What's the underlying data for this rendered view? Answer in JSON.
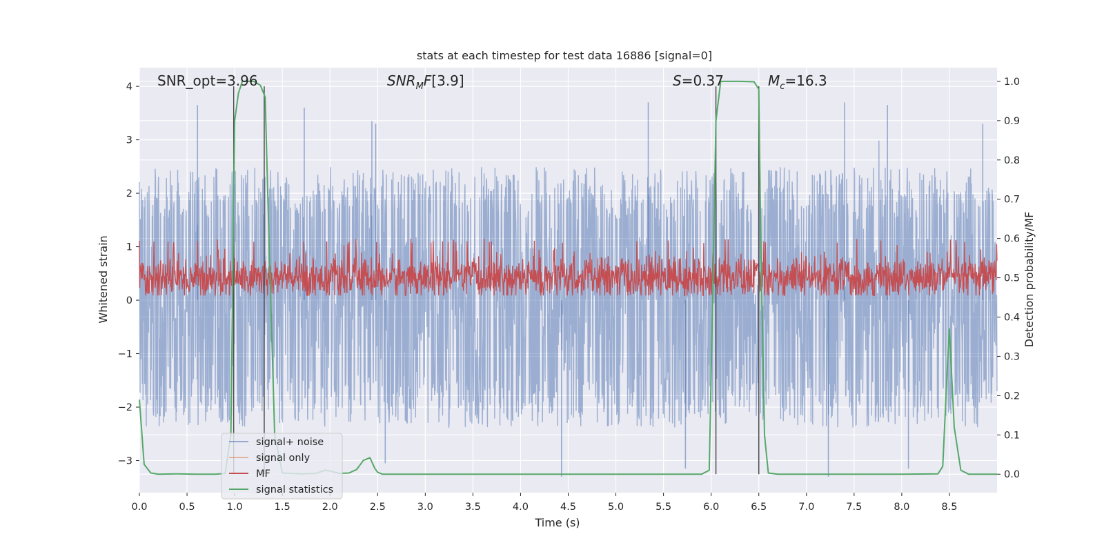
{
  "chart_data": {
    "type": "line",
    "title": "stats at each timestep for test data 16886 [signal=0]",
    "xlabel": "Time (s)",
    "ylabel_left": "Whitened strain",
    "ylabel_right": "Detection probability/MF",
    "xlim": [
      0.0,
      9.0
    ],
    "ylim_left": [
      -3.6,
      4.35
    ],
    "ylim_right": [
      -0.047,
      1.035
    ],
    "x_ticks": [
      "0.0",
      "0.5",
      "1.0",
      "1.5",
      "2.0",
      "2.5",
      "3.0",
      "3.5",
      "4.0",
      "4.5",
      "5.0",
      "5.5",
      "6.0",
      "6.5",
      "7.0",
      "7.5",
      "8.0",
      "8.5"
    ],
    "x_tick_values": [
      0.0,
      0.5,
      1.0,
      1.5,
      2.0,
      2.5,
      3.0,
      3.5,
      4.0,
      4.5,
      5.0,
      5.5,
      6.0,
      6.5,
      7.0,
      7.5,
      8.0,
      8.5
    ],
    "y_left_ticks": [
      "4",
      "3",
      "2",
      "1",
      "0",
      "−1",
      "−2",
      "−3"
    ],
    "y_left_tick_values": [
      4,
      3,
      2,
      1,
      0,
      -1,
      -2,
      -3
    ],
    "y_right_ticks": [
      "1.0",
      "0.9",
      "0.8",
      "0.7",
      "0.6",
      "0.5",
      "0.4",
      "0.3",
      "0.2",
      "0.1",
      "0.0"
    ],
    "y_right_tick_values": [
      1.0,
      0.9,
      0.8,
      0.7,
      0.6,
      0.5,
      0.4,
      0.3,
      0.2,
      0.1,
      0.0
    ],
    "grid": true,
    "legend_placement": "lower-left",
    "annotations": {
      "snr_opt": "SNR_opt=3.96",
      "snr_mf": "[3.9]",
      "s_value": "=0.37",
      "mc_value": "=16.3"
    },
    "vertical_markers": [
      0.99,
      1.31,
      6.05,
      6.5
    ],
    "series": [
      {
        "name": "signal+ noise",
        "color": "#4c72b0",
        "axis": "left",
        "description_type": "noise",
        "typical_range": [
          -1.9,
          2.0
        ],
        "extreme_range": [
          -3.3,
          3.75
        ],
        "spikes": [
          [
            0.61,
            3.65
          ],
          [
            1.73,
            3.6
          ],
          [
            2.44,
            3.35
          ],
          [
            2.48,
            3.3
          ],
          [
            5.34,
            3.7
          ],
          [
            7.4,
            3.7
          ],
          [
            7.85,
            3.65
          ],
          [
            8.85,
            3.3
          ],
          [
            4.43,
            -3.3
          ],
          [
            7.23,
            -3.3
          ],
          [
            5.73,
            -3.15
          ],
          [
            2.58,
            -3.05
          ],
          [
            8.07,
            -3.15
          ]
        ]
      },
      {
        "name": "signal only",
        "color": "#dd8452",
        "axis": "left",
        "x": [],
        "y": []
      },
      {
        "name": "MF",
        "color": "#c44e52",
        "axis": "right",
        "description_type": "noise",
        "typical_range": [
          0.46,
          0.56
        ],
        "extreme_range": [
          0.455,
          0.6
        ]
      },
      {
        "name": "signal statistics",
        "color": "#55a868",
        "axis": "right",
        "x": [
          0.0,
          0.05,
          0.12,
          0.2,
          0.4,
          0.6,
          0.8,
          0.9,
          0.96,
          0.98,
          1.0,
          1.04,
          1.08,
          1.2,
          1.27,
          1.32,
          1.36,
          1.42,
          1.5,
          1.7,
          1.85,
          1.95,
          2.0,
          2.1,
          2.2,
          2.28,
          2.35,
          2.42,
          2.47,
          2.5,
          2.55,
          2.6,
          3.0,
          4.0,
          5.0,
          5.9,
          5.98,
          6.02,
          6.05,
          6.1,
          6.15,
          6.3,
          6.45,
          6.5,
          6.52,
          6.56,
          6.6,
          6.7,
          7.0,
          8.0,
          8.38,
          8.43,
          8.48,
          8.5,
          8.55,
          8.62,
          8.7,
          9.0
        ],
        "y": [
          0.19,
          0.025,
          0.003,
          0.0,
          0.001,
          0.0,
          0.0,
          0.002,
          0.1,
          0.5,
          0.9,
          0.97,
          1.0,
          1.0,
          0.99,
          0.96,
          0.6,
          0.1,
          0.003,
          0.001,
          0.002,
          0.01,
          0.008,
          0.002,
          0.003,
          0.012,
          0.035,
          0.042,
          0.015,
          0.005,
          0.0,
          0.0,
          0.0,
          0.0,
          0.0,
          0.0,
          0.01,
          0.5,
          0.9,
          1.0,
          1.0,
          1.0,
          0.999,
          0.98,
          0.6,
          0.1,
          0.003,
          0.0,
          0.0,
          0.0,
          0.001,
          0.02,
          0.28,
          0.37,
          0.12,
          0.01,
          0.0,
          0.0
        ]
      }
    ]
  }
}
